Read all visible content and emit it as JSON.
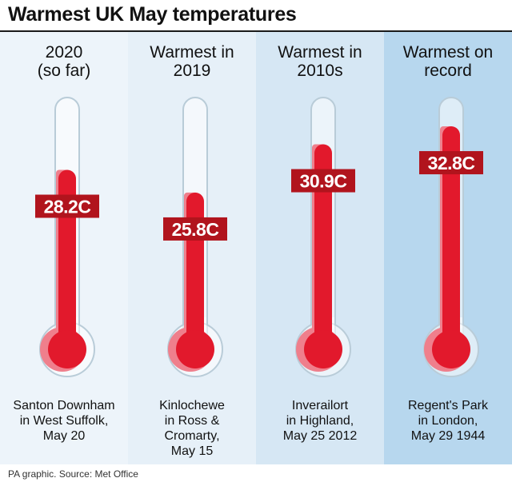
{
  "title": "Warmest UK May temperatures",
  "source": "PA graphic. Source: Met Office",
  "colors": {
    "mercury": "#e2192c",
    "mercury_shadow": "#ef7f8c",
    "label_bg": "#b1141d",
    "tube_outline": "#b9ccd8",
    "panel_backgrounds": [
      "#edf4fa",
      "#e6f0f8",
      "#d6e7f4",
      "#b7d7ee"
    ]
  },
  "chart_data": {
    "type": "bar",
    "title": "Warmest UK May temperatures",
    "unit": "C",
    "categories": [
      "2020 (so far)",
      "Warmest in 2019",
      "Warmest in 2010s",
      "Warmest on record"
    ],
    "values": [
      28.2,
      25.8,
      30.9,
      32.8
    ],
    "ylim": [
      10,
      35
    ],
    "grid": false,
    "items": [
      {
        "heading_lines": [
          "2020",
          "(so far)"
        ],
        "label": "28.2C",
        "value": 28.2,
        "place_lines": [
          "Santon Downham",
          "in West Suffolk,",
          "May 20"
        ]
      },
      {
        "heading_lines": [
          "Warmest in",
          "2019"
        ],
        "label": "25.8C",
        "value": 25.8,
        "place_lines": [
          "Kinlochewe",
          "in Ross &",
          "Cromarty,",
          "May 15"
        ]
      },
      {
        "heading_lines": [
          "Warmest in",
          "2010s"
        ],
        "label": "30.9C",
        "value": 30.9,
        "place_lines": [
          "Inverailort",
          "in Highland,",
          "May 25 2012"
        ]
      },
      {
        "heading_lines": [
          "Warmest on",
          "record"
        ],
        "label": "32.8C",
        "value": 32.8,
        "place_lines": [
          "Regent's Park",
          "in London,",
          "May 29 1944"
        ]
      }
    ]
  }
}
